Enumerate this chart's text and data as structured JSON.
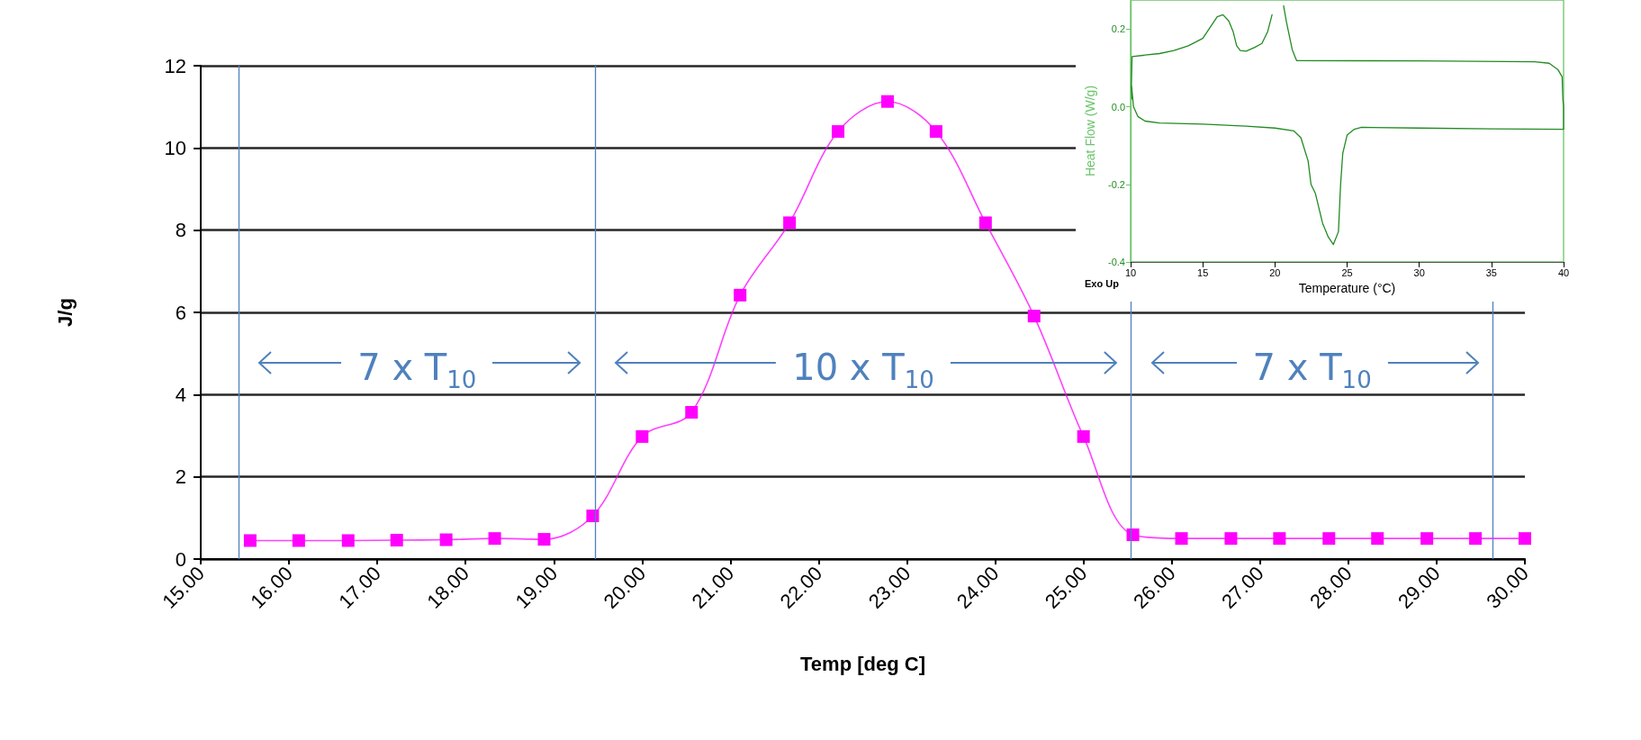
{
  "chart_data": [
    {
      "type": "line",
      "xlabel": "Temp [deg C]",
      "ylabel": "J/g",
      "xlim": [
        15,
        30
      ],
      "xticks": [
        {
          "value": 15,
          "label": "15.00"
        },
        {
          "value": 16,
          "label": "16.00"
        },
        {
          "value": 17,
          "label": "17.00"
        },
        {
          "value": 18,
          "label": "18.00"
        },
        {
          "value": 19,
          "label": "19.00"
        },
        {
          "value": 20,
          "label": "20.00"
        },
        {
          "value": 21,
          "label": "21.00"
        },
        {
          "value": 22,
          "label": "22.00"
        },
        {
          "value": 23,
          "label": "23.00"
        },
        {
          "value": 24,
          "label": "24.00"
        },
        {
          "value": 25,
          "label": "25.00"
        },
        {
          "value": 26,
          "label": "26.00"
        },
        {
          "value": 27,
          "label": "27.00"
        },
        {
          "value": 28,
          "label": "28.00"
        },
        {
          "value": 29,
          "label": "29.00"
        },
        {
          "value": 30,
          "label": "30.00"
        }
      ],
      "ylim": [
        0,
        12
      ],
      "yticks": [
        0,
        2,
        4,
        6,
        8,
        10,
        12
      ],
      "grid": "y",
      "marker": "square",
      "line_style": "solid",
      "x": [
        15.56,
        16.11,
        16.67,
        17.22,
        17.78,
        18.33,
        18.89,
        19.44,
        20.0,
        20.56,
        21.11,
        21.67,
        22.22,
        22.78,
        23.33,
        23.89,
        24.44,
        25.0,
        25.56,
        26.11,
        26.67,
        27.22,
        27.78,
        28.33,
        28.89,
        29.44,
        30.0
      ],
      "series": [
        {
          "color": "#ff00ff",
          "values": [
            0.45,
            0.45,
            0.45,
            0.46,
            0.47,
            0.5,
            0.48,
            1.05,
            2.98,
            3.57,
            6.42,
            8.18,
            10.4,
            11.13,
            10.4,
            8.18,
            5.91,
            2.98,
            0.59,
            0.5,
            0.5,
            0.5,
            0.5,
            0.5,
            0.5,
            0.5,
            0.5
          ]
        }
      ],
      "ref_lines": [
        {
          "axis": "x",
          "value": 15.43,
          "color": "#4f81bd"
        },
        {
          "axis": "x",
          "value": 19.47,
          "color": "#4f81bd"
        },
        {
          "axis": "x",
          "value": 25.54,
          "color": "#4f81bd"
        },
        {
          "axis": "x",
          "value": 29.64,
          "color": "#4f81bd"
        }
      ],
      "annotations": [
        "7 x T$_{10}$",
        "10 x T$_{10}$",
        "7 x T$_{10}$"
      ]
    },
    {
      "type": "line",
      "xlabel": "Temperature (°C)",
      "ylabel": "Heat Flow (W/g)",
      "xlim": [
        10,
        40
      ],
      "xticks": [
        10,
        15,
        20,
        25,
        30,
        35,
        40
      ],
      "ylim": [
        -0.4,
        0.275
      ],
      "yticks": [
        -0.4,
        -0.2,
        {
          "value": 0,
          "label": "0.0"
        },
        0.2
      ],
      "grid": false,
      "series": [
        {
          "color": "#228b22",
          "x": [
            10.05,
            10.2,
            10.5,
            11,
            12,
            15,
            18,
            20,
            21.3,
            21.8,
            22.3,
            22.5,
            22.8,
            23.3,
            23.7,
            24.05,
            24.4,
            24.55,
            24.7,
            25,
            25.5,
            26,
            30,
            35,
            40,
            40,
            39.95,
            39.9,
            39.6,
            39,
            38,
            30,
            21.5,
            21.2,
            20.8,
            20.6,
            20.5,
            20.0,
            19.8,
            19.5,
            19.1,
            18.6,
            18,
            17.6,
            17.35,
            17.1,
            16.8,
            16.4,
            16.0,
            15.5,
            15,
            14,
            13,
            12,
            11,
            10.1,
            10.05,
            10.1
          ],
          "values": [
            0.06,
            0.0,
            -0.025,
            -0.037,
            -0.042,
            -0.045,
            -0.05,
            -0.055,
            -0.062,
            -0.08,
            -0.14,
            -0.2,
            -0.223,
            -0.3,
            -0.336,
            -0.355,
            -0.322,
            -0.2,
            -0.12,
            -0.073,
            -0.058,
            -0.053,
            -0.055,
            -0.057,
            -0.058,
            0.0,
            0.02,
            0.077,
            0.096,
            0.112,
            0.116,
            0.118,
            0.119,
            0.147,
            0.218,
            0.26,
            null,
            null,
            0.237,
            0.194,
            0.163,
            0.153,
            0.143,
            0.145,
            0.157,
            0.194,
            0.221,
            0.237,
            0.232,
            0.204,
            0.176,
            0.157,
            0.145,
            0.137,
            0.133,
            0.129,
            0.05,
            0.02
          ]
        }
      ],
      "annotations": [
        "Exo Up"
      ]
    }
  ]
}
